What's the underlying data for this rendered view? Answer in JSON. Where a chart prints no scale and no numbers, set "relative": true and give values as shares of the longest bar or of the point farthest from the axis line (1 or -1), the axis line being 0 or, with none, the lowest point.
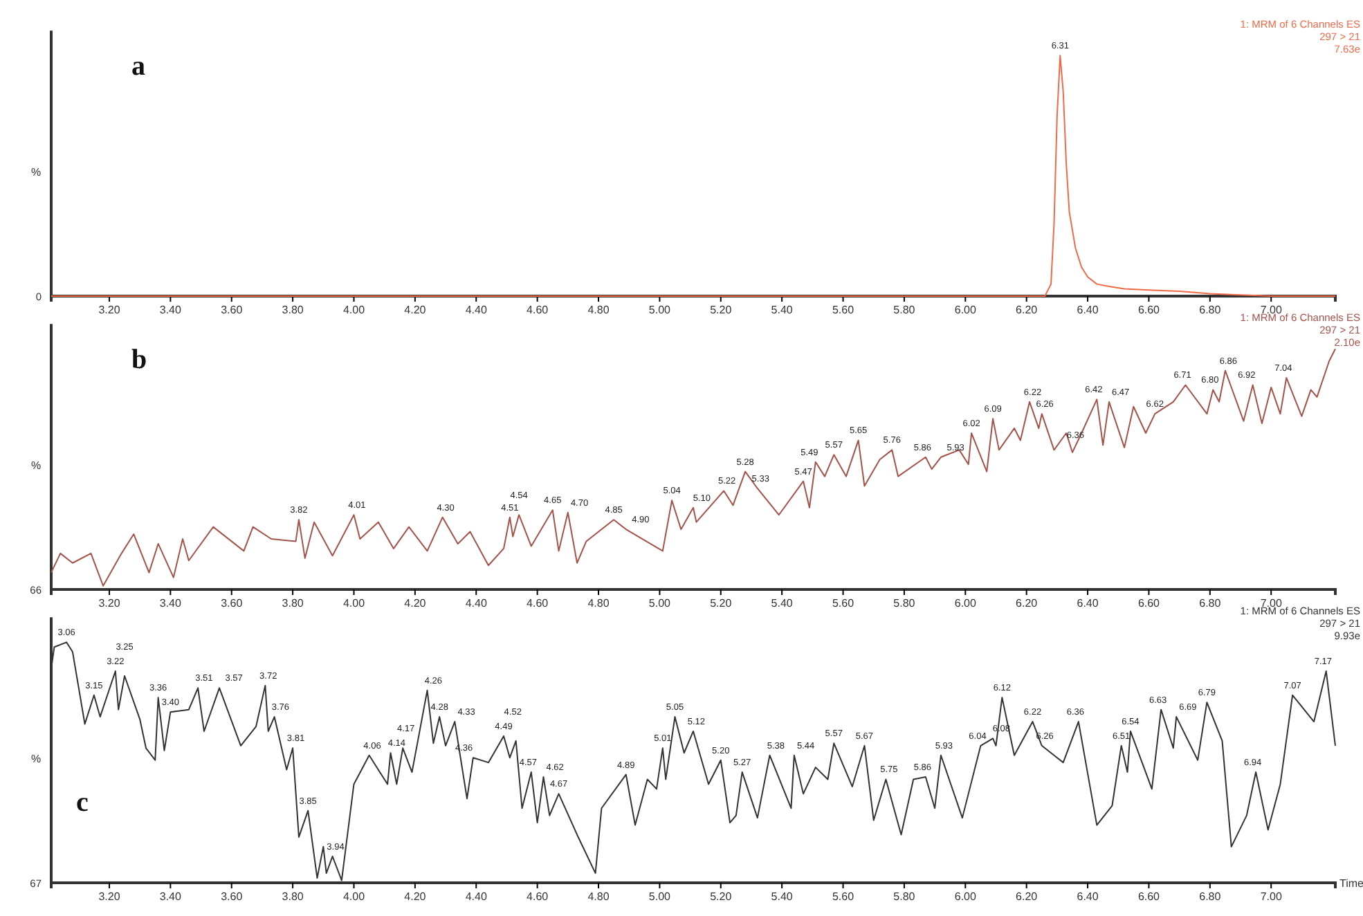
{
  "chart_data": [
    {
      "type": "line",
      "title": "a",
      "ylabel": "%",
      "relative": true,
      "xlim": [
        3.01,
        7.21
      ],
      "xticks": [
        {
          "value": 3.2,
          "label": "3.20"
        },
        {
          "value": 3.4,
          "label": "3.40"
        },
        {
          "value": 3.6,
          "label": "3.60"
        },
        {
          "value": 3.8,
          "label": "3.80"
        },
        {
          "value": 4.0,
          "label": "4.00"
        },
        {
          "value": 4.2,
          "label": "4.20"
        },
        {
          "value": 4.4,
          "label": "4.40"
        },
        {
          "value": 4.6,
          "label": "4.60"
        },
        {
          "value": 4.8,
          "label": "4.80"
        },
        {
          "value": 5.0,
          "label": "5.00"
        },
        {
          "value": 5.2,
          "label": "5.20"
        },
        {
          "value": 5.4,
          "label": "5.40"
        },
        {
          "value": 5.6,
          "label": "5.60"
        },
        {
          "value": 5.8,
          "label": "5.80"
        },
        {
          "value": 6.0,
          "label": "6.00"
        },
        {
          "value": 6.2,
          "label": "6.20"
        },
        {
          "value": 6.4,
          "label": "6.40"
        },
        {
          "value": 6.6,
          "label": "6.60"
        },
        {
          "value": 6.8,
          "label": "6.80"
        },
        {
          "value": 7.0,
          "label": "7.00"
        }
      ],
      "x": [
        3.01,
        3.5,
        4,
        4.5,
        5,
        5.5,
        6,
        6.2,
        6.26,
        6.28,
        6.29,
        6.3,
        6.31,
        6.32,
        6.33,
        6.34,
        6.36,
        6.38,
        6.4,
        6.43,
        6.47,
        6.52,
        6.6,
        6.7,
        6.8,
        6.9,
        7.0,
        7.1,
        7.21
      ],
      "series": [
        {
          "color": "#f06a4a",
          "values": [
            0,
            0,
            0,
            0,
            0,
            0,
            0,
            0,
            0,
            0.05,
            0.3,
            0.75,
            1,
            0.85,
            0.55,
            0.35,
            0.2,
            0.12,
            0.08,
            0.05,
            0.04,
            0.03,
            0.025,
            0.02,
            0.01,
            0.005,
            0,
            0,
            0
          ]
        }
      ],
      "annotations": [
        "1: MRM of 6 Channels ES",
        "297 > 21",
        "7.63e",
        "0",
        {
          "text": "6.31",
          "x": 6.31,
          "y": 1
        }
      ]
    },
    {
      "type": "line",
      "title": "b",
      "ylabel": "%",
      "relative": true,
      "xlim": [
        3.01,
        7.21
      ],
      "xticks": [
        {
          "value": 3.2,
          "label": "3.20"
        },
        {
          "value": 3.4,
          "label": "3.40"
        },
        {
          "value": 3.6,
          "label": "3.60"
        },
        {
          "value": 3.8,
          "label": "3.80"
        },
        {
          "value": 4.0,
          "label": "4.00"
        },
        {
          "value": 4.2,
          "label": "4.20"
        },
        {
          "value": 4.4,
          "label": "4.40"
        },
        {
          "value": 4.6,
          "label": "4.60"
        },
        {
          "value": 4.8,
          "label": "4.80"
        },
        {
          "value": 5.0,
          "label": "5.00"
        },
        {
          "value": 5.2,
          "label": "5.20"
        },
        {
          "value": 5.4,
          "label": "5.40"
        },
        {
          "value": 5.6,
          "label": "5.60"
        },
        {
          "value": 5.8,
          "label": "5.80"
        },
        {
          "value": 6.0,
          "label": "6.00"
        },
        {
          "value": 6.2,
          "label": "6.20"
        },
        {
          "value": 6.4,
          "label": "6.40"
        },
        {
          "value": 6.6,
          "label": "6.60"
        },
        {
          "value": 6.8,
          "label": "6.80"
        },
        {
          "value": 7.0,
          "label": "7.00"
        }
      ],
      "x": [
        3.01,
        3.04,
        3.08,
        3.14,
        3.18,
        3.24,
        3.28,
        3.33,
        3.36,
        3.41,
        3.44,
        3.46,
        3.54,
        3.64,
        3.67,
        3.73,
        3.81,
        3.82,
        3.84,
        3.87,
        3.93,
        4.0,
        4.02,
        4.08,
        4.13,
        4.18,
        4.24,
        4.29,
        4.34,
        4.38,
        4.44,
        4.49,
        4.51,
        4.52,
        4.54,
        4.58,
        4.65,
        4.67,
        4.7,
        4.73,
        4.76,
        4.85,
        4.89,
        5.01,
        5.04,
        5.07,
        5.11,
        5.12,
        5.21,
        5.24,
        5.28,
        5.32,
        5.39,
        5.47,
        5.49,
        5.51,
        5.54,
        5.57,
        5.61,
        5.65,
        5.67,
        5.72,
        5.76,
        5.78,
        5.87,
        5.89,
        5.92,
        5.98,
        6.01,
        6.02,
        6.07,
        6.09,
        6.11,
        6.16,
        6.18,
        6.21,
        6.24,
        6.25,
        6.29,
        6.33,
        6.35,
        6.38,
        6.43,
        6.45,
        6.47,
        6.52,
        6.55,
        6.59,
        6.62,
        6.68,
        6.72,
        6.79,
        6.81,
        6.83,
        6.85,
        6.91,
        6.94,
        6.97,
        7.0,
        7.03,
        7.05,
        7.1,
        7.13,
        7.15,
        7.19,
        7.21
      ],
      "series": [
        {
          "color": "#a5524a",
          "values": [
            0.07,
            0.15,
            0.11,
            0.15,
            0.015,
            0.15,
            0.23,
            0.07,
            0.19,
            0.05,
            0.21,
            0.12,
            0.26,
            0.16,
            0.26,
            0.21,
            0.2,
            0.29,
            0.13,
            0.28,
            0.14,
            0.31,
            0.21,
            0.28,
            0.17,
            0.26,
            0.16,
            0.3,
            0.19,
            0.24,
            0.1,
            0.17,
            0.3,
            0.22,
            0.31,
            0.18,
            0.33,
            0.16,
            0.32,
            0.11,
            0.2,
            0.29,
            0.25,
            0.16,
            0.37,
            0.25,
            0.34,
            0.28,
            0.41,
            0.35,
            0.49,
            0.42,
            0.31,
            0.45,
            0.34,
            0.53,
            0.47,
            0.56,
            0.47,
            0.62,
            0.43,
            0.54,
            0.58,
            0.47,
            0.55,
            0.5,
            0.55,
            0.58,
            0.52,
            0.65,
            0.49,
            0.71,
            0.58,
            0.67,
            0.62,
            0.78,
            0.67,
            0.73,
            0.58,
            0.65,
            0.57,
            0.65,
            0.79,
            0.6,
            0.78,
            0.59,
            0.76,
            0.65,
            0.73,
            0.78,
            0.85,
            0.73,
            0.83,
            0.78,
            0.91,
            0.7,
            0.85,
            0.69,
            0.84,
            0.73,
            0.88,
            0.72,
            0.83,
            0.8,
            0.95,
            1
          ]
        }
      ],
      "annotations": [
        "1: MRM of 6 Channels ES",
        "297 > 21",
        "2.10e",
        "66",
        {
          "text": "3.82",
          "x": 3.82,
          "y": 0.29
        },
        {
          "text": "4.01",
          "x": 4.01,
          "y": 0.31
        },
        {
          "text": "4.30",
          "x": 4.3,
          "y": 0.3
        },
        {
          "text": "4.51",
          "x": 4.51,
          "y": 0.3
        },
        {
          "text": "4.54",
          "x": 4.54,
          "y": 0.31
        },
        {
          "text": "4.65",
          "x": 4.65,
          "y": 0.33
        },
        {
          "text": "4.70",
          "x": 4.7,
          "y": 0.32
        },
        {
          "text": "4.85",
          "x": 4.85,
          "y": 0.29
        },
        {
          "text": "4.90",
          "x": 4.9,
          "y": 0.25
        },
        {
          "text": "5.04",
          "x": 5.04,
          "y": 0.37
        },
        {
          "text": "5.10",
          "x": 5.1,
          "y": 0.34
        },
        {
          "text": "5.22",
          "x": 5.22,
          "y": 0.41
        },
        {
          "text": "5.28",
          "x": 5.28,
          "y": 0.49
        },
        {
          "text": "5.33",
          "x": 5.33,
          "y": 0.42
        },
        {
          "text": "5.47",
          "x": 5.47,
          "y": 0.45
        },
        {
          "text": "5.49",
          "x": 5.49,
          "y": 0.53
        },
        {
          "text": "5.57",
          "x": 5.57,
          "y": 0.56
        },
        {
          "text": "5.65",
          "x": 5.65,
          "y": 0.62
        },
        {
          "text": "5.76",
          "x": 5.76,
          "y": 0.58
        },
        {
          "text": "5.86",
          "x": 5.86,
          "y": 0.55
        },
        {
          "text": "5.93",
          "x": 5.93,
          "y": 0.55
        },
        {
          "text": "6.02",
          "x": 6.02,
          "y": 0.65
        },
        {
          "text": "6.09",
          "x": 6.09,
          "y": 0.71
        },
        {
          "text": "6.22",
          "x": 6.22,
          "y": 0.78
        },
        {
          "text": "6.26",
          "x": 6.26,
          "y": 0.73
        },
        {
          "text": "6.36",
          "x": 6.36,
          "y": 0.6
        },
        {
          "text": "6.42",
          "x": 6.42,
          "y": 0.79
        },
        {
          "text": "6.47",
          "x": 6.47,
          "y": 0.78
        },
        {
          "text": "6.62",
          "x": 6.62,
          "y": 0.73
        },
        {
          "text": "6.71",
          "x": 6.71,
          "y": 0.85
        },
        {
          "text": "6.80",
          "x": 6.8,
          "y": 0.83
        },
        {
          "text": "6.86",
          "x": 6.86,
          "y": 0.91
        },
        {
          "text": "6.92",
          "x": 6.92,
          "y": 0.85
        },
        {
          "text": "7.04",
          "x": 7.04,
          "y": 0.88
        }
      ]
    },
    {
      "type": "line",
      "ylabel": "%",
      "title": "c",
      "xlabel": "Time",
      "relative": true,
      "xlim": [
        3.01,
        7.21
      ],
      "xticks": [
        {
          "value": 3.2,
          "label": "3.20"
        },
        {
          "value": 3.4,
          "label": "3.40"
        },
        {
          "value": 3.6,
          "label": "3.60"
        },
        {
          "value": 3.8,
          "label": "3.80"
        },
        {
          "value": 4.0,
          "label": "4.00"
        },
        {
          "value": 4.2,
          "label": "4.20"
        },
        {
          "value": 4.4,
          "label": "4.40"
        },
        {
          "value": 4.6,
          "label": "4.60"
        },
        {
          "value": 4.8,
          "label": "4.80"
        },
        {
          "value": 5.0,
          "label": "5.00"
        },
        {
          "value": 5.2,
          "label": "5.20"
        },
        {
          "value": 5.4,
          "label": "5.40"
        },
        {
          "value": 5.6,
          "label": "5.60"
        },
        {
          "value": 5.8,
          "label": "5.80"
        },
        {
          "value": 6.0,
          "label": "6.00"
        },
        {
          "value": 6.2,
          "label": "6.20"
        },
        {
          "value": 6.4,
          "label": "6.40"
        },
        {
          "value": 6.6,
          "label": "6.60"
        },
        {
          "value": 6.8,
          "label": "6.80"
        },
        {
          "value": 7.0,
          "label": "7.00"
        }
      ],
      "x": [
        3.01,
        3.02,
        3.06,
        3.08,
        3.12,
        3.15,
        3.17,
        3.22,
        3.23,
        3.25,
        3.3,
        3.32,
        3.35,
        3.36,
        3.38,
        3.4,
        3.46,
        3.49,
        3.51,
        3.56,
        3.63,
        3.68,
        3.71,
        3.72,
        3.74,
        3.78,
        3.8,
        3.82,
        3.85,
        3.88,
        3.9,
        3.91,
        3.93,
        3.96,
        4.0,
        4.05,
        4.11,
        4.12,
        4.14,
        4.16,
        4.19,
        4.24,
        4.26,
        4.28,
        4.3,
        4.33,
        4.37,
        4.39,
        4.44,
        4.49,
        4.51,
        4.53,
        4.55,
        4.58,
        4.6,
        4.62,
        4.64,
        4.67,
        4.73,
        4.79,
        4.81,
        4.89,
        4.92,
        4.96,
        4.99,
        5.01,
        5.02,
        5.05,
        5.08,
        5.11,
        5.16,
        5.2,
        5.23,
        5.25,
        5.27,
        5.32,
        5.36,
        5.43,
        5.44,
        5.47,
        5.51,
        5.55,
        5.57,
        5.63,
        5.67,
        5.7,
        5.74,
        5.79,
        5.83,
        5.87,
        5.9,
        5.92,
        5.99,
        6.05,
        6.09,
        6.1,
        6.12,
        6.16,
        6.22,
        6.25,
        6.32,
        6.37,
        6.43,
        6.48,
        6.51,
        6.53,
        6.54,
        6.61,
        6.64,
        6.68,
        6.69,
        6.76,
        6.79,
        6.84,
        6.87,
        6.92,
        6.95,
        6.99,
        7.03,
        7.07,
        7.14,
        7.18,
        7.21
      ],
      "series": [
        {
          "color": "#333333",
          "values": [
            0.89,
            0.98,
            1,
            0.96,
            0.66,
            0.78,
            0.69,
            0.88,
            0.72,
            0.86,
            0.68,
            0.56,
            0.51,
            0.77,
            0.55,
            0.71,
            0.72,
            0.81,
            0.63,
            0.81,
            0.57,
            0.65,
            0.82,
            0.63,
            0.69,
            0.47,
            0.56,
            0.19,
            0.3,
            0.02,
            0.15,
            0.04,
            0.11,
            0.01,
            0.41,
            0.53,
            0.41,
            0.54,
            0.41,
            0.56,
            0.46,
            0.8,
            0.58,
            0.69,
            0.57,
            0.67,
            0.35,
            0.52,
            0.5,
            0.61,
            0.52,
            0.59,
            0.31,
            0.46,
            0.25,
            0.44,
            0.28,
            0.37,
            0.2,
            0.04,
            0.31,
            0.45,
            0.24,
            0.43,
            0.39,
            0.56,
            0.43,
            0.69,
            0.54,
            0.63,
            0.41,
            0.51,
            0.25,
            0.28,
            0.46,
            0.27,
            0.53,
            0.31,
            0.53,
            0.37,
            0.48,
            0.43,
            0.58,
            0.4,
            0.57,
            0.26,
            0.43,
            0.2,
            0.43,
            0.44,
            0.31,
            0.53,
            0.27,
            0.57,
            0.6,
            0.57,
            0.77,
            0.53,
            0.67,
            0.57,
            0.5,
            0.67,
            0.24,
            0.32,
            0.57,
            0.46,
            0.63,
            0.39,
            0.72,
            0.56,
            0.69,
            0.51,
            0.75,
            0.59,
            0.15,
            0.28,
            0.46,
            0.22,
            0.41,
            0.78,
            0.67,
            0.88,
            0.57
          ]
        }
      ],
      "annotations": [
        "1: MRM of 6 Channels ES",
        "297 > 21",
        "9.93e",
        "67",
        {
          "text": "3.06",
          "x": 3.06,
          "y": 1
        },
        {
          "text": "3.15",
          "x": 3.15,
          "y": 0.78
        },
        {
          "text": "3.22",
          "x": 3.22,
          "y": 0.88
        },
        {
          "text": "3.25",
          "x": 3.25,
          "y": 0.86
        },
        {
          "text": "3.36",
          "x": 3.36,
          "y": 0.77
        },
        {
          "text": "3.40",
          "x": 3.4,
          "y": 0.71
        },
        {
          "text": "3.51",
          "x": 3.51,
          "y": 0.81
        },
        {
          "text": "3.57",
          "x": 3.57,
          "y": 0.81
        },
        {
          "text": "3.72",
          "x": 3.72,
          "y": 0.82
        },
        {
          "text": "3.76",
          "x": 3.76,
          "y": 0.69
        },
        {
          "text": "3.81",
          "x": 3.81,
          "y": 0.56
        },
        {
          "text": "3.85",
          "x": 3.85,
          "y": 0.3
        },
        {
          "text": "3.94",
          "x": 3.94,
          "y": 0.11
        },
        {
          "text": "4.06",
          "x": 4.06,
          "y": 0.53
        },
        {
          "text": "4.14",
          "x": 4.14,
          "y": 0.54
        },
        {
          "text": "4.17",
          "x": 4.17,
          "y": 0.56
        },
        {
          "text": "4.26",
          "x": 4.26,
          "y": 0.8
        },
        {
          "text": "4.28",
          "x": 4.28,
          "y": 0.69
        },
        {
          "text": "4.33",
          "x": 4.33,
          "y": 0.67
        },
        {
          "text": "4.36",
          "x": 4.36,
          "y": 0.52
        },
        {
          "text": "4.49",
          "x": 4.49,
          "y": 0.61
        },
        {
          "text": "4.52",
          "x": 4.52,
          "y": 0.59
        },
        {
          "text": "4.57",
          "x": 4.57,
          "y": 0.46
        },
        {
          "text": "4.62",
          "x": 4.62,
          "y": 0.44
        },
        {
          "text": "4.67",
          "x": 4.67,
          "y": 0.37
        },
        {
          "text": "4.89",
          "x": 4.89,
          "y": 0.45
        },
        {
          "text": "5.01",
          "x": 5.01,
          "y": 0.56
        },
        {
          "text": "5.05",
          "x": 5.05,
          "y": 0.69
        },
        {
          "text": "5.12",
          "x": 5.12,
          "y": 0.63
        },
        {
          "text": "5.20",
          "x": 5.2,
          "y": 0.51
        },
        {
          "text": "5.27",
          "x": 5.27,
          "y": 0.46
        },
        {
          "text": "5.38",
          "x": 5.38,
          "y": 0.53
        },
        {
          "text": "5.44",
          "x": 5.44,
          "y": 0.53
        },
        {
          "text": "5.57",
          "x": 5.57,
          "y": 0.58
        },
        {
          "text": "5.67",
          "x": 5.67,
          "y": 0.57
        },
        {
          "text": "5.75",
          "x": 5.75,
          "y": 0.43
        },
        {
          "text": "5.86",
          "x": 5.86,
          "y": 0.44
        },
        {
          "text": "5.93",
          "x": 5.93,
          "y": 0.53
        },
        {
          "text": "6.04",
          "x": 6.04,
          "y": 0.57
        },
        {
          "text": "6.08",
          "x": 6.08,
          "y": 0.6
        },
        {
          "text": "6.12",
          "x": 6.12,
          "y": 0.77
        },
        {
          "text": "6.22",
          "x": 6.22,
          "y": 0.67
        },
        {
          "text": "6.26",
          "x": 6.26,
          "y": 0.57
        },
        {
          "text": "6.36",
          "x": 6.36,
          "y": 0.67
        },
        {
          "text": "6.51",
          "x": 6.51,
          "y": 0.57
        },
        {
          "text": "6.54",
          "x": 6.54,
          "y": 0.63
        },
        {
          "text": "6.63",
          "x": 6.63,
          "y": 0.72
        },
        {
          "text": "6.69",
          "x": 6.69,
          "y": 0.69
        },
        {
          "text": "6.79",
          "x": 6.79,
          "y": 0.75
        },
        {
          "text": "6.94",
          "x": 6.94,
          "y": 0.46
        },
        {
          "text": "7.07",
          "x": 7.07,
          "y": 0.78
        },
        {
          "text": "7.17",
          "x": 7.17,
          "y": 0.88
        }
      ]
    }
  ]
}
